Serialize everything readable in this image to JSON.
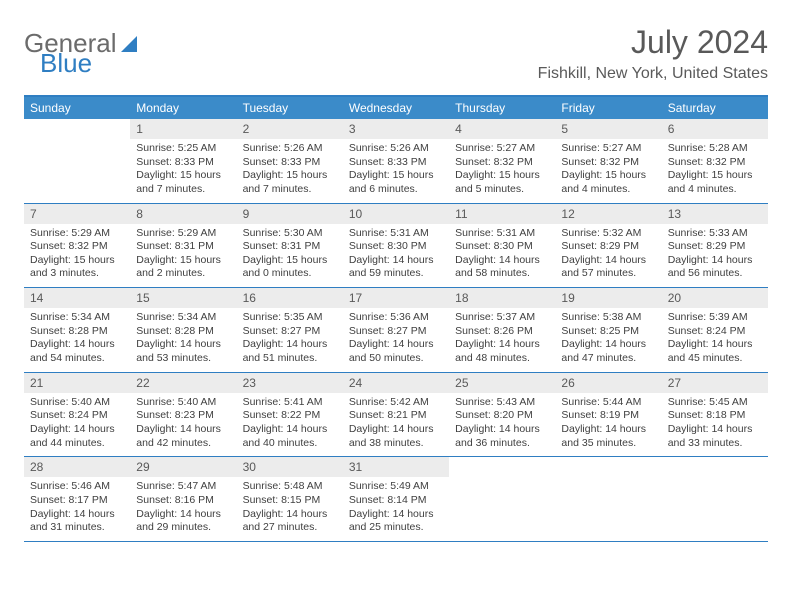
{
  "logo": {
    "text1": "General",
    "text2": "Blue"
  },
  "header": {
    "month": "July 2024",
    "location": "Fishkill, New York, United States"
  },
  "colors": {
    "brand_blue": "#2f7ec2",
    "header_blue": "#3b8bc9",
    "daynum_bg": "#ececec",
    "text_gray": "#595959"
  },
  "dow": [
    "Sunday",
    "Monday",
    "Tuesday",
    "Wednesday",
    "Thursday",
    "Friday",
    "Saturday"
  ],
  "weeks": [
    [
      null,
      {
        "d": "1",
        "sr": "Sunrise: 5:25 AM",
        "ss": "Sunset: 8:33 PM",
        "dl1": "Daylight: 15 hours",
        "dl2": "and 7 minutes."
      },
      {
        "d": "2",
        "sr": "Sunrise: 5:26 AM",
        "ss": "Sunset: 8:33 PM",
        "dl1": "Daylight: 15 hours",
        "dl2": "and 7 minutes."
      },
      {
        "d": "3",
        "sr": "Sunrise: 5:26 AM",
        "ss": "Sunset: 8:33 PM",
        "dl1": "Daylight: 15 hours",
        "dl2": "and 6 minutes."
      },
      {
        "d": "4",
        "sr": "Sunrise: 5:27 AM",
        "ss": "Sunset: 8:32 PM",
        "dl1": "Daylight: 15 hours",
        "dl2": "and 5 minutes."
      },
      {
        "d": "5",
        "sr": "Sunrise: 5:27 AM",
        "ss": "Sunset: 8:32 PM",
        "dl1": "Daylight: 15 hours",
        "dl2": "and 4 minutes."
      },
      {
        "d": "6",
        "sr": "Sunrise: 5:28 AM",
        "ss": "Sunset: 8:32 PM",
        "dl1": "Daylight: 15 hours",
        "dl2": "and 4 minutes."
      }
    ],
    [
      {
        "d": "7",
        "sr": "Sunrise: 5:29 AM",
        "ss": "Sunset: 8:32 PM",
        "dl1": "Daylight: 15 hours",
        "dl2": "and 3 minutes."
      },
      {
        "d": "8",
        "sr": "Sunrise: 5:29 AM",
        "ss": "Sunset: 8:31 PM",
        "dl1": "Daylight: 15 hours",
        "dl2": "and 2 minutes."
      },
      {
        "d": "9",
        "sr": "Sunrise: 5:30 AM",
        "ss": "Sunset: 8:31 PM",
        "dl1": "Daylight: 15 hours",
        "dl2": "and 0 minutes."
      },
      {
        "d": "10",
        "sr": "Sunrise: 5:31 AM",
        "ss": "Sunset: 8:30 PM",
        "dl1": "Daylight: 14 hours",
        "dl2": "and 59 minutes."
      },
      {
        "d": "11",
        "sr": "Sunrise: 5:31 AM",
        "ss": "Sunset: 8:30 PM",
        "dl1": "Daylight: 14 hours",
        "dl2": "and 58 minutes."
      },
      {
        "d": "12",
        "sr": "Sunrise: 5:32 AM",
        "ss": "Sunset: 8:29 PM",
        "dl1": "Daylight: 14 hours",
        "dl2": "and 57 minutes."
      },
      {
        "d": "13",
        "sr": "Sunrise: 5:33 AM",
        "ss": "Sunset: 8:29 PM",
        "dl1": "Daylight: 14 hours",
        "dl2": "and 56 minutes."
      }
    ],
    [
      {
        "d": "14",
        "sr": "Sunrise: 5:34 AM",
        "ss": "Sunset: 8:28 PM",
        "dl1": "Daylight: 14 hours",
        "dl2": "and 54 minutes."
      },
      {
        "d": "15",
        "sr": "Sunrise: 5:34 AM",
        "ss": "Sunset: 8:28 PM",
        "dl1": "Daylight: 14 hours",
        "dl2": "and 53 minutes."
      },
      {
        "d": "16",
        "sr": "Sunrise: 5:35 AM",
        "ss": "Sunset: 8:27 PM",
        "dl1": "Daylight: 14 hours",
        "dl2": "and 51 minutes."
      },
      {
        "d": "17",
        "sr": "Sunrise: 5:36 AM",
        "ss": "Sunset: 8:27 PM",
        "dl1": "Daylight: 14 hours",
        "dl2": "and 50 minutes."
      },
      {
        "d": "18",
        "sr": "Sunrise: 5:37 AM",
        "ss": "Sunset: 8:26 PM",
        "dl1": "Daylight: 14 hours",
        "dl2": "and 48 minutes."
      },
      {
        "d": "19",
        "sr": "Sunrise: 5:38 AM",
        "ss": "Sunset: 8:25 PM",
        "dl1": "Daylight: 14 hours",
        "dl2": "and 47 minutes."
      },
      {
        "d": "20",
        "sr": "Sunrise: 5:39 AM",
        "ss": "Sunset: 8:24 PM",
        "dl1": "Daylight: 14 hours",
        "dl2": "and 45 minutes."
      }
    ],
    [
      {
        "d": "21",
        "sr": "Sunrise: 5:40 AM",
        "ss": "Sunset: 8:24 PM",
        "dl1": "Daylight: 14 hours",
        "dl2": "and 44 minutes."
      },
      {
        "d": "22",
        "sr": "Sunrise: 5:40 AM",
        "ss": "Sunset: 8:23 PM",
        "dl1": "Daylight: 14 hours",
        "dl2": "and 42 minutes."
      },
      {
        "d": "23",
        "sr": "Sunrise: 5:41 AM",
        "ss": "Sunset: 8:22 PM",
        "dl1": "Daylight: 14 hours",
        "dl2": "and 40 minutes."
      },
      {
        "d": "24",
        "sr": "Sunrise: 5:42 AM",
        "ss": "Sunset: 8:21 PM",
        "dl1": "Daylight: 14 hours",
        "dl2": "and 38 minutes."
      },
      {
        "d": "25",
        "sr": "Sunrise: 5:43 AM",
        "ss": "Sunset: 8:20 PM",
        "dl1": "Daylight: 14 hours",
        "dl2": "and 36 minutes."
      },
      {
        "d": "26",
        "sr": "Sunrise: 5:44 AM",
        "ss": "Sunset: 8:19 PM",
        "dl1": "Daylight: 14 hours",
        "dl2": "and 35 minutes."
      },
      {
        "d": "27",
        "sr": "Sunrise: 5:45 AM",
        "ss": "Sunset: 8:18 PM",
        "dl1": "Daylight: 14 hours",
        "dl2": "and 33 minutes."
      }
    ],
    [
      {
        "d": "28",
        "sr": "Sunrise: 5:46 AM",
        "ss": "Sunset: 8:17 PM",
        "dl1": "Daylight: 14 hours",
        "dl2": "and 31 minutes."
      },
      {
        "d": "29",
        "sr": "Sunrise: 5:47 AM",
        "ss": "Sunset: 8:16 PM",
        "dl1": "Daylight: 14 hours",
        "dl2": "and 29 minutes."
      },
      {
        "d": "30",
        "sr": "Sunrise: 5:48 AM",
        "ss": "Sunset: 8:15 PM",
        "dl1": "Daylight: 14 hours",
        "dl2": "and 27 minutes."
      },
      {
        "d": "31",
        "sr": "Sunrise: 5:49 AM",
        "ss": "Sunset: 8:14 PM",
        "dl1": "Daylight: 14 hours",
        "dl2": "and 25 minutes."
      },
      null,
      null,
      null
    ]
  ]
}
